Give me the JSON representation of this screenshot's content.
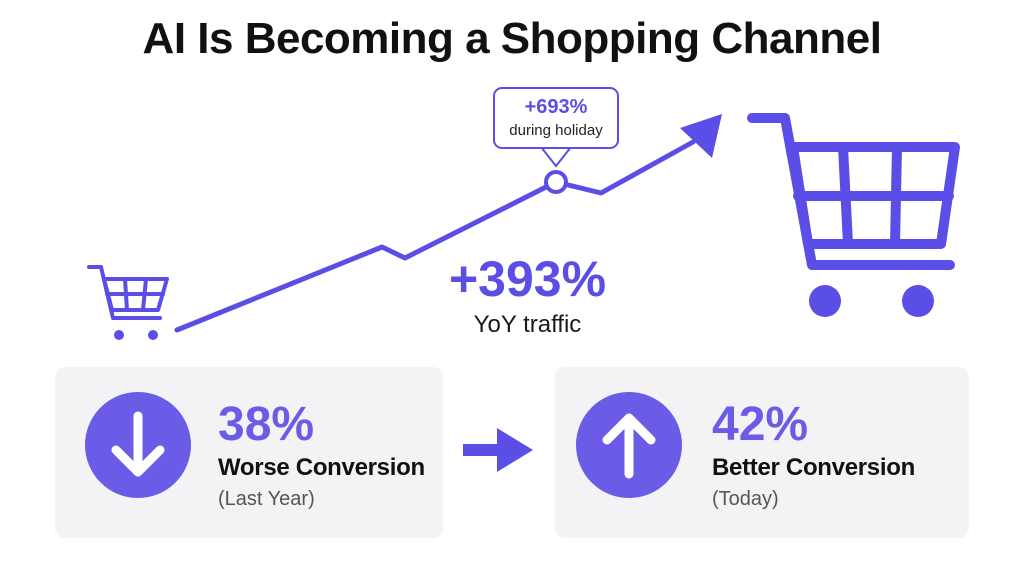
{
  "title": "AI Is Becoming a Shopping Channel",
  "callout": {
    "value": "+693%",
    "label": "during holiday"
  },
  "highlight": {
    "value": "+393%",
    "label": "YoY traffic"
  },
  "cards": [
    {
      "value": "38%",
      "label": "Worse Conversion",
      "sub": "(Last Year)",
      "icon": "arrow-down-icon"
    },
    {
      "value": "42%",
      "label": "Better Conversion",
      "sub": "(Today)",
      "icon": "arrow-up-icon"
    }
  ],
  "colors": {
    "accent": "#5b4ee6",
    "badge": "#6b5ce7",
    "card_bg": "#f3f3f6",
    "title": "#111111"
  }
}
